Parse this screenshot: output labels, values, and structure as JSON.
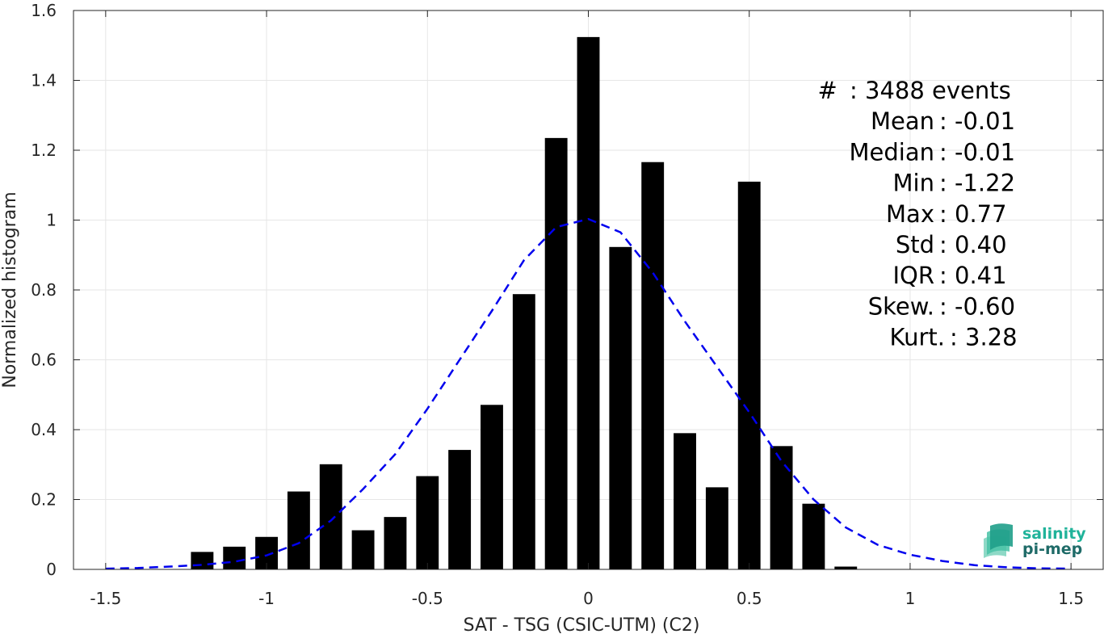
{
  "chart_data": {
    "type": "bar",
    "xlabel": "SAT - TSG (CSIC-UTM) (C2)",
    "ylabel": "Normalized histogram",
    "xlim": [
      -1.6,
      1.6
    ],
    "ylim": [
      0,
      1.6
    ],
    "xticks": [
      -1.5,
      -1,
      -0.5,
      0,
      0.5,
      1,
      1.5
    ],
    "xtick_labels": [
      "-1.5",
      "-1",
      "-0.5",
      "0",
      "0.5",
      "1",
      "1.5"
    ],
    "yticks": [
      0,
      0.2,
      0.4,
      0.6,
      0.8,
      1,
      1.2,
      1.4,
      1.6
    ],
    "ytick_labels": [
      "0",
      "0.2",
      "0.4",
      "0.6",
      "0.8",
      "1",
      "1.2",
      "1.4",
      "1.6"
    ],
    "grid": true,
    "bar_color": "#000000",
    "bar_width": 0.07,
    "bins": [
      {
        "x": -1.2,
        "y": 0.05
      },
      {
        "x": -1.1,
        "y": 0.065
      },
      {
        "x": -1.0,
        "y": 0.093
      },
      {
        "x": -0.9,
        "y": 0.223
      },
      {
        "x": -0.8,
        "y": 0.301
      },
      {
        "x": -0.7,
        "y": 0.112
      },
      {
        "x": -0.6,
        "y": 0.15
      },
      {
        "x": -0.5,
        "y": 0.267
      },
      {
        "x": -0.4,
        "y": 0.342
      },
      {
        "x": -0.3,
        "y": 0.471
      },
      {
        "x": -0.2,
        "y": 0.788
      },
      {
        "x": -0.1,
        "y": 1.235
      },
      {
        "x": 0.0,
        "y": 1.524
      },
      {
        "x": 0.1,
        "y": 0.923
      },
      {
        "x": 0.2,
        "y": 1.166
      },
      {
        "x": 0.3,
        "y": 0.39
      },
      {
        "x": 0.4,
        "y": 0.235
      },
      {
        "x": 0.5,
        "y": 1.11
      },
      {
        "x": 0.6,
        "y": 0.353
      },
      {
        "x": 0.7,
        "y": 0.188
      },
      {
        "x": 0.8,
        "y": 0.008
      }
    ],
    "fit_curve": {
      "color": "#0000ee",
      "style": "dashed",
      "points": [
        [
          -1.5,
          0.002
        ],
        [
          -1.4,
          0.004
        ],
        [
          -1.3,
          0.008
        ],
        [
          -1.2,
          0.013
        ],
        [
          -1.1,
          0.022
        ],
        [
          -1.0,
          0.04
        ],
        [
          -0.9,
          0.075
        ],
        [
          -0.8,
          0.14
        ],
        [
          -0.7,
          0.23
        ],
        [
          -0.6,
          0.33
        ],
        [
          -0.5,
          0.46
        ],
        [
          -0.4,
          0.6
        ],
        [
          -0.3,
          0.74
        ],
        [
          -0.2,
          0.885
        ],
        [
          -0.1,
          0.98
        ],
        [
          0.0,
          1.003
        ],
        [
          0.1,
          0.965
        ],
        [
          0.2,
          0.85
        ],
        [
          0.3,
          0.71
        ],
        [
          0.4,
          0.58
        ],
        [
          0.5,
          0.45
        ],
        [
          0.6,
          0.31
        ],
        [
          0.7,
          0.2
        ],
        [
          0.8,
          0.12
        ],
        [
          0.9,
          0.07
        ],
        [
          1.0,
          0.042
        ],
        [
          1.1,
          0.024
        ],
        [
          1.2,
          0.012
        ],
        [
          1.3,
          0.006
        ],
        [
          1.4,
          0.003
        ],
        [
          1.5,
          0.002
        ]
      ]
    },
    "stats": [
      {
        "label": "#  ",
        "value": "3488 events"
      },
      {
        "label": "Mean",
        "value": "-0.01"
      },
      {
        "label": "Median",
        "value": "-0.01"
      },
      {
        "label": "Min",
        "value": "-1.22"
      },
      {
        "label": "Max",
        "value": "0.77"
      },
      {
        "label": "Std",
        "value": "0.40"
      },
      {
        "label": "IQR",
        "value": "0.41"
      },
      {
        "label": "Skew.",
        "value": "-0.60"
      },
      {
        "label": "Kurt.",
        "value": "3.28"
      }
    ]
  },
  "logo": {
    "line1": "salinity",
    "line2": "pi-mep",
    "color1": "#20b39a",
    "color2": "#1f6b68"
  }
}
